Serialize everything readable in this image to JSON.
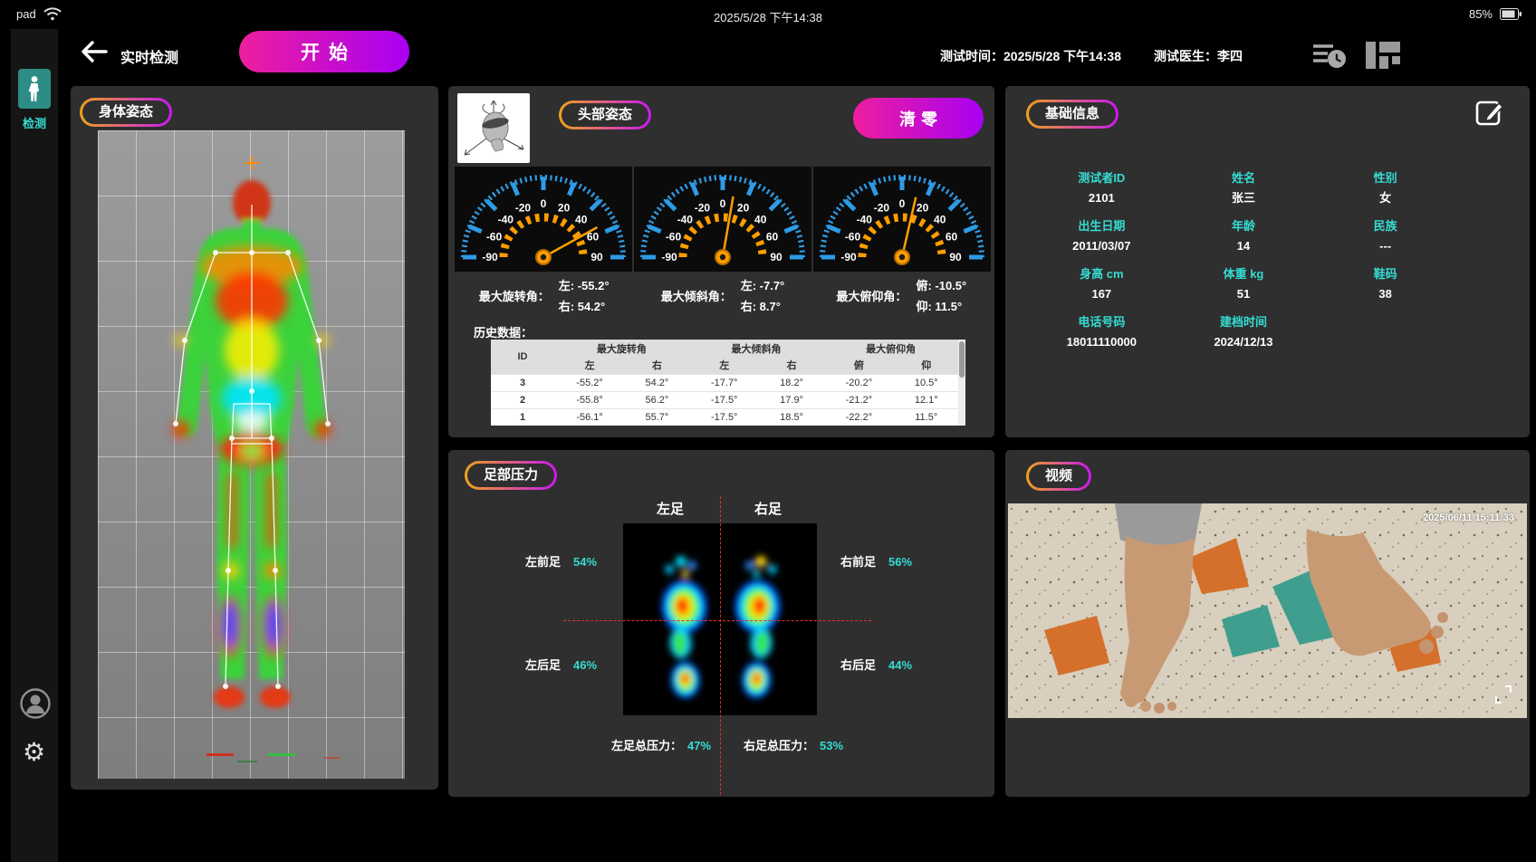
{
  "status_bar": {
    "device": "pad",
    "datetime": "2025/5/28 下午14:38",
    "battery": "85%"
  },
  "header": {
    "title": "实时检测",
    "start_button": "开始",
    "test_time_label": "测试时间：",
    "test_time": "2025/5/28  下午14:38",
    "doctor_label": "测试医生：",
    "doctor": "李四"
  },
  "sidebar": {
    "detect_label": "检测"
  },
  "body_panel": {
    "title": "身体姿态"
  },
  "head_panel": {
    "title": "头部姿态",
    "clear_button": "清零",
    "gauge_ticks": [
      -90,
      -60,
      -40,
      -20,
      0,
      20,
      40,
      60,
      90
    ],
    "gauges": [
      {
        "name": "最大旋转角：",
        "line1": "左:  -55.2°",
        "line2": "右:  54.2°",
        "needle": 54.2
      },
      {
        "name": "最大倾斜角：",
        "line1": "左:  -7.7°",
        "line2": "右:  8.7°",
        "needle": 8.7
      },
      {
        "name": "最大俯仰角：",
        "line1": "俯:  -10.5°",
        "line2": "仰:  11.5°",
        "needle": 11.5
      }
    ],
    "history_label": "历史数据：",
    "history": {
      "col_id": "ID",
      "groups": [
        "最大旋转角",
        "最大倾斜角",
        "最大俯仰角"
      ],
      "sub_left1": "左",
      "sub_right1": "右",
      "sub_left2": "左",
      "sub_right2": "右",
      "sub_down": "俯",
      "sub_up": "仰",
      "rows": [
        {
          "id": "3",
          "values": [
            "-55.2°",
            "54.2°",
            "-17.7°",
            "18.2°",
            "-20.2°",
            "10.5°"
          ]
        },
        {
          "id": "2",
          "values": [
            "-55.8°",
            "56.2°",
            "-17.5°",
            "17.9°",
            "-21.2°",
            "12.1°"
          ]
        },
        {
          "id": "1",
          "values": [
            "-56.1°",
            "55.7°",
            "-17.5°",
            "18.5°",
            "-22.2°",
            "11.5°"
          ]
        }
      ]
    }
  },
  "foot_panel": {
    "title": "足部压力",
    "left_foot": "左足",
    "right_foot": "右足",
    "quadrants": [
      {
        "label": "左前足",
        "value": "54%"
      },
      {
        "label": "右前足",
        "value": "56%"
      },
      {
        "label": "左后足",
        "value": "46%"
      },
      {
        "label": "右后足",
        "value": "44%"
      }
    ],
    "left_total_label": "左足总压力：",
    "left_total": "47%",
    "right_total_label": "右足总压力：",
    "right_total": "53%"
  },
  "info_panel": {
    "title": "基础信息",
    "fields": [
      {
        "label": "测试者ID",
        "value": "2101"
      },
      {
        "label": "姓名",
        "value": "张三"
      },
      {
        "label": "性别",
        "value": "女"
      },
      {
        "label": "出生日期",
        "value": "2011/03/07"
      },
      {
        "label": "年龄",
        "value": "14"
      },
      {
        "label": "民族",
        "value": "---"
      },
      {
        "label": "身高 cm",
        "value": "167"
      },
      {
        "label": "体重 kg",
        "value": "51"
      },
      {
        "label": "鞋码",
        "value": "38"
      },
      {
        "label": "电话号码",
        "value": "18011110000"
      },
      {
        "label": "建档时间",
        "value": "2024/12/13"
      }
    ]
  },
  "video_panel": {
    "title": "视频",
    "timestamp": "2025/06/11 15:11:33"
  },
  "colors": {
    "accent_cyan": "#35dcd2",
    "gradient_pink": "#ee1e9e",
    "gradient_purple": "#a800f2",
    "pill_orange": "#f0a11c",
    "gauge_blue": "#2e9be5",
    "gauge_orange": "#ff9d00",
    "crosshair_red": "#e03131"
  }
}
